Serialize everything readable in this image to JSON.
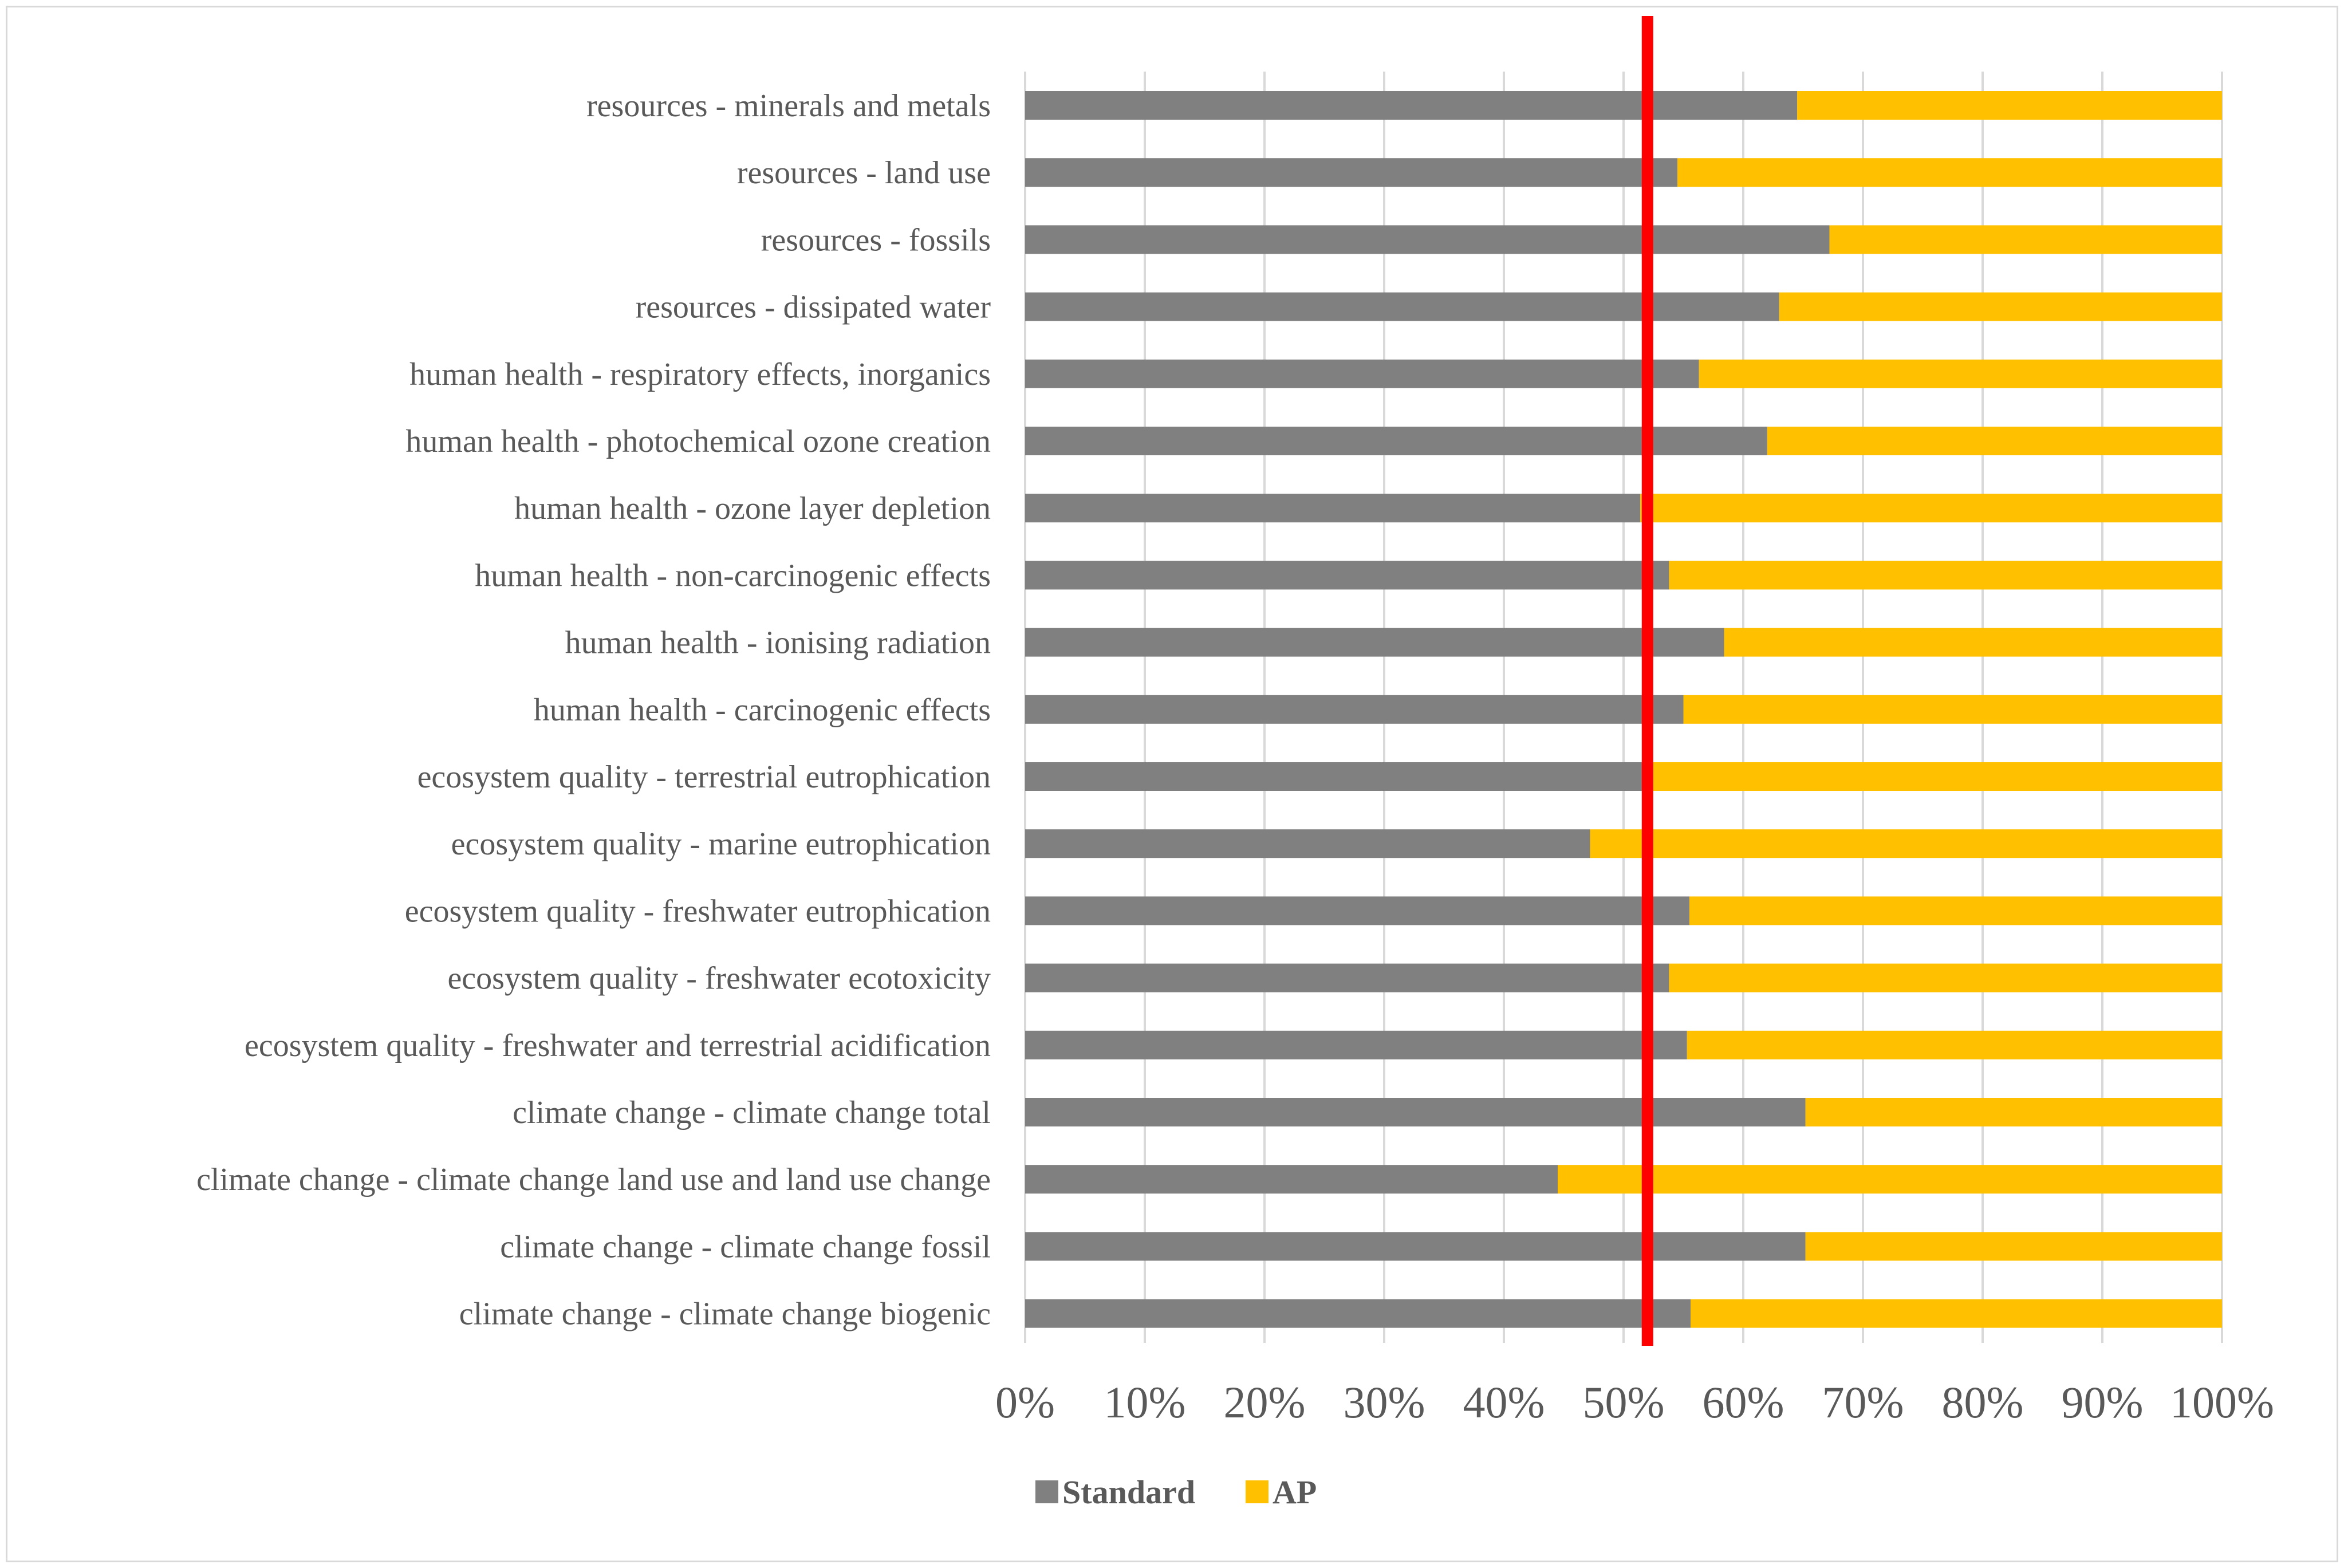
{
  "chart_data": {
    "type": "bar",
    "orientation": "horizontal",
    "stacked": "100%",
    "title": "",
    "xlabel": "",
    "ylabel": "",
    "xlim": [
      0,
      100
    ],
    "grid": true,
    "legend_position": "bottom",
    "categories": [
      "resources - minerals and metals",
      "resources - land use",
      "resources - fossils",
      "resources - dissipated water",
      "human health - respiratory effects, inorganics",
      "human health - photochemical ozone creation",
      "human health - ozone layer depletion",
      "human health - non-carcinogenic effects",
      "human health - ionising radiation",
      "human health - carcinogenic effects",
      "ecosystem quality - terrestrial eutrophication",
      "ecosystem quality - marine eutrophication",
      "ecosystem quality - freshwater eutrophication",
      "ecosystem quality - freshwater ecotoxicity",
      "ecosystem quality - freshwater and terrestrial acidification",
      "climate change - climate change total",
      "climate change - climate change land use and land use change",
      "climate change - climate change fossil",
      "climate change - climate change biogenic"
    ],
    "series": [
      {
        "name": "Standard",
        "color": "#808080",
        "values": [
          64.5,
          54.5,
          67.2,
          63.0,
          56.3,
          62.0,
          51.4,
          53.8,
          58.4,
          55.0,
          52.0,
          47.2,
          55.5,
          53.8,
          55.3,
          65.2,
          44.5,
          65.2,
          55.6
        ]
      },
      {
        "name": "AP",
        "color": "#ffc000",
        "values": [
          35.5,
          45.5,
          32.8,
          37.0,
          43.7,
          38.0,
          48.6,
          46.2,
          41.6,
          45.0,
          48.0,
          52.8,
          44.5,
          46.2,
          44.7,
          34.8,
          55.5,
          34.8,
          44.4
        ]
      }
    ],
    "x_ticks": [
      "0%",
      "10%",
      "20%",
      "30%",
      "40%",
      "50%",
      "60%",
      "70%",
      "80%",
      "90%",
      "100%"
    ],
    "reference_line": {
      "value": 52.0,
      "color": "#ff0000"
    }
  }
}
